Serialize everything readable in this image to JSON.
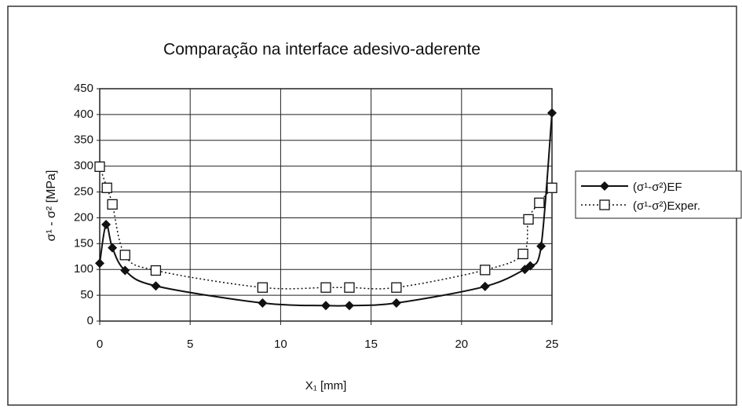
{
  "chart_data": {
    "type": "line",
    "title": "Comparação na interface adesivo-aderente",
    "x_label": "X₁ [mm]",
    "y_label": "σ¹ - σ² [MPa]",
    "xlim": [
      0,
      25
    ],
    "xticks": [
      0,
      5,
      10,
      15,
      20,
      25
    ],
    "ylim": [
      0,
      450
    ],
    "yticks": [
      0,
      50,
      100,
      150,
      200,
      250,
      300,
      350,
      400,
      450
    ],
    "grid": true,
    "legend": "right",
    "series": [
      {
        "name": "(σ¹-σ²)EF",
        "color": "#111111",
        "marker": "diamond",
        "line": "solid",
        "x": [
          0,
          0.35,
          0.7,
          1.4,
          3.1,
          9,
          12.5,
          13.8,
          16.4,
          21.3,
          23.5,
          23.8,
          24.4,
          25
        ],
        "values": [
          112,
          187,
          142,
          98,
          68,
          35,
          30,
          30,
          35,
          67,
          100,
          107,
          145,
          403
        ]
      },
      {
        "name": "(σ¹-σ²)Exper.",
        "color": "#111111",
        "marker": "square",
        "line": "dotted",
        "x": [
          0,
          0.4,
          0.7,
          1.4,
          3.1,
          9,
          12.5,
          13.8,
          16.4,
          21.3,
          23.4,
          23.7,
          24.3,
          25
        ],
        "values": [
          299,
          258,
          226,
          128,
          98,
          65,
          65,
          65,
          65,
          99,
          130,
          197,
          229,
          258
        ]
      }
    ]
  }
}
